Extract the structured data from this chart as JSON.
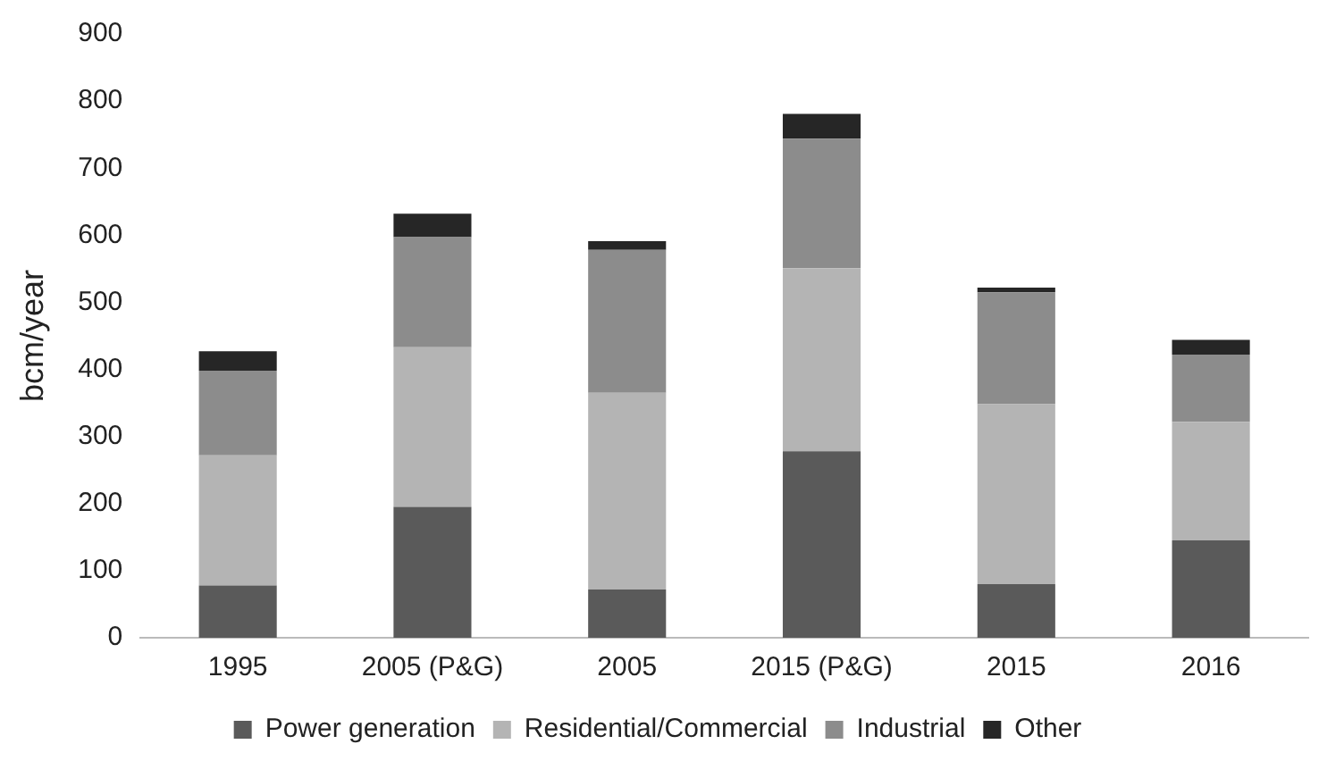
{
  "chart_data": {
    "type": "bar",
    "stacked": true,
    "ylabel": "bcm/year",
    "categories": [
      "1995",
      "2005 (P&G)",
      "2005",
      "2015 (P&G)",
      "2015",
      "2016"
    ],
    "series": [
      {
        "name": "Power generation",
        "color": "#5a5a5a",
        "values": [
          78,
          195,
          72,
          278,
          80,
          145
        ]
      },
      {
        "name": "Residential/Commercial",
        "color": "#b4b4b4",
        "values": [
          194,
          238,
          293,
          273,
          268,
          177
        ]
      },
      {
        "name": "Industrial",
        "color": "#8c8c8c",
        "values": [
          126,
          164,
          213,
          193,
          167,
          100
        ]
      },
      {
        "name": "Other",
        "color": "#262626",
        "values": [
          29,
          35,
          13,
          37,
          7,
          22
        ]
      }
    ],
    "ylim": [
      0,
      900
    ],
    "yticks": [
      0,
      100,
      200,
      300,
      400,
      500,
      600,
      700,
      800,
      900
    ],
    "grid": false,
    "legend": "bottom"
  }
}
